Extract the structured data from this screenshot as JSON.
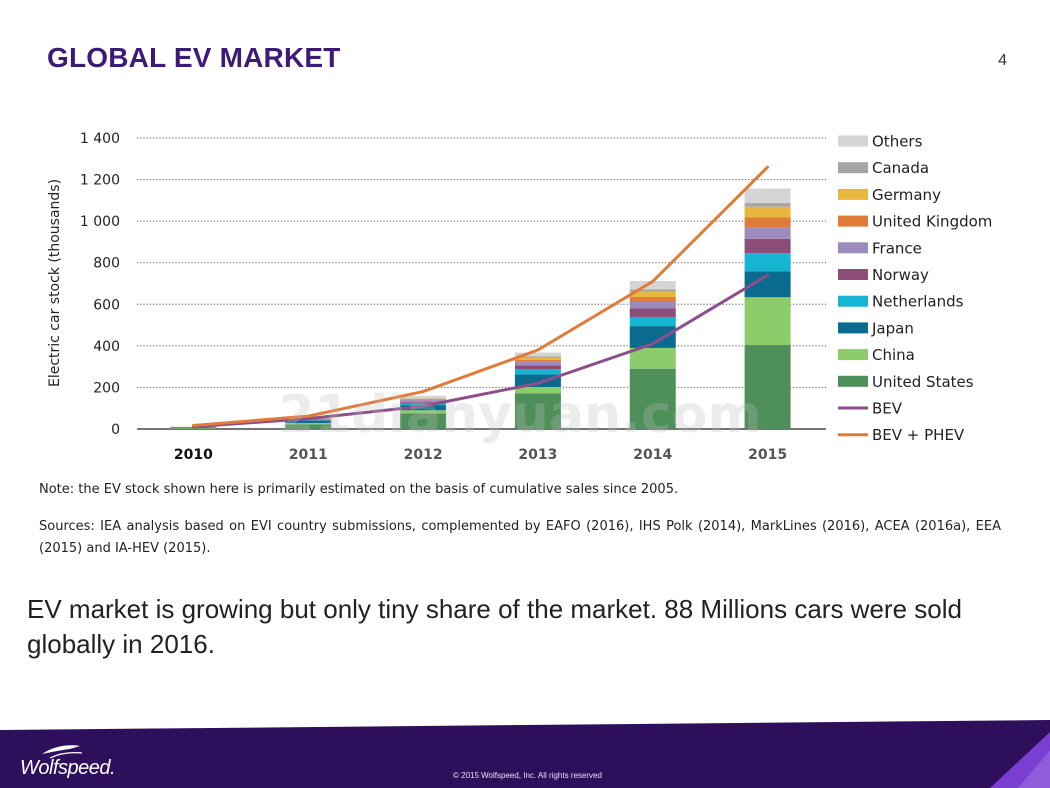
{
  "slide": {
    "title": "GLOBAL EV MARKET",
    "page_number": "4",
    "note": "Note: the EV stock shown here is primarily estimated on the basis of cumulative sales since 2005.",
    "sources": "Sources: IEA analysis based on EVI country submissions, complemented by EAFO (2016), IHS Polk (2014), MarkLines (2016), ACEA (2016a), EEA (2015) and IA-HEV (2015).",
    "body_text": "EV market is growing but only tiny share of the market. 88 Millions cars were sold globally in 2016.",
    "watermark": "21dianyuan.com",
    "logo_text": "Wolfspeed.",
    "copyright": "© 2015 Wolfspeed, Inc. All rights reserved"
  },
  "colors": {
    "title": "#3d1a78",
    "footer_dark": "#2e0f5c",
    "footer_accent": "#7a3fd0"
  },
  "chart_data": {
    "type": "bar",
    "stacked": true,
    "ylabel": "Electric car stock (thousands)",
    "xlabel": "",
    "ylim": [
      0,
      1400
    ],
    "yticks": [
      0,
      200,
      400,
      600,
      800,
      1000,
      1200,
      1400
    ],
    "ytick_labels": [
      "0",
      "200",
      "400",
      "600",
      "800",
      "1 000",
      "1 200",
      "1 400"
    ],
    "categories": [
      "2010",
      "2011",
      "2012",
      "2013",
      "2014",
      "2015"
    ],
    "grid": "horizontal dotted",
    "legend_position": "right",
    "bar_series": [
      {
        "name": "United States",
        "color": "#4e8f5a",
        "values": [
          4,
          22,
          75,
          172,
          290,
          404
        ]
      },
      {
        "name": "China",
        "color": "#8ccc6a",
        "values": [
          1,
          7,
          15,
          30,
          100,
          230
        ]
      },
      {
        "name": "Japan",
        "color": "#0b6b8f",
        "values": [
          3,
          12,
          25,
          60,
          105,
          125
        ]
      },
      {
        "name": "Netherlands",
        "color": "#17b5d4",
        "values": [
          0,
          1,
          6,
          25,
          44,
          87
        ]
      },
      {
        "name": "Norway",
        "color": "#8c4e78",
        "values": [
          1,
          3,
          8,
          19,
          41,
          69
        ]
      },
      {
        "name": "France",
        "color": "#9c8cbc",
        "values": [
          0,
          2,
          10,
          18,
          31,
          55
        ]
      },
      {
        "name": "United Kingdom",
        "color": "#e07b3a",
        "values": [
          1,
          1,
          3,
          8,
          24,
          49
        ]
      },
      {
        "name": "Germany",
        "color": "#e8b83e",
        "values": [
          0,
          2,
          4,
          12,
          26,
          50
        ]
      },
      {
        "name": "Canada",
        "color": "#a5a5a5",
        "values": [
          0,
          1,
          2,
          6,
          11,
          18
        ]
      },
      {
        "name": "Others",
        "color": "#d5d5d5",
        "values": [
          1,
          2,
          12,
          18,
          40,
          70
        ]
      }
    ],
    "line_series": [
      {
        "name": "BEV",
        "color": "#8c4e8c",
        "values": [
          11,
          50,
          110,
          220,
          410,
          740
        ]
      },
      {
        "name": "BEV + PHEV",
        "color": "#e07b3a",
        "values": [
          17,
          62,
          180,
          380,
          710,
          1260
        ]
      }
    ]
  }
}
